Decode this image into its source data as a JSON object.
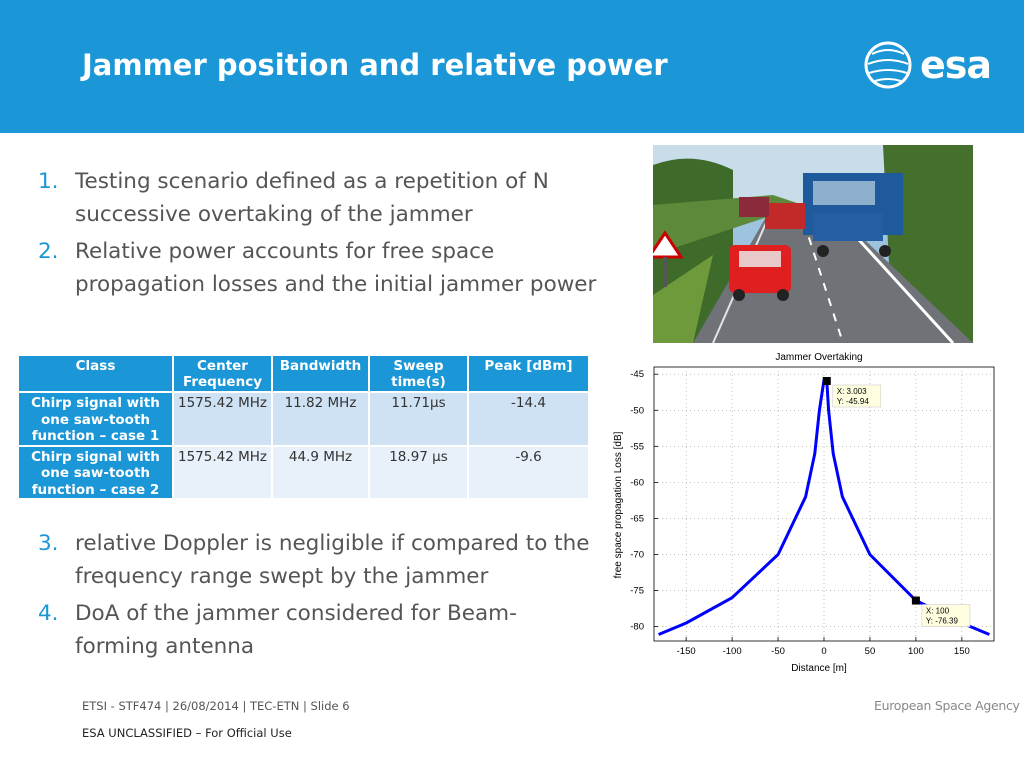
{
  "header": {
    "title": "Jammer position and relative power",
    "logo_text": "esa",
    "bg_color": "#1b96d6"
  },
  "bullets_top": [
    {
      "num": "1.",
      "text": "Testing scenario defined as a repetition of N successive overtaking of the jammer"
    },
    {
      "num": "2.",
      "text": "Relative power accounts for free space propagation losses and the initial jammer power"
    }
  ],
  "bullets_bottom": [
    {
      "num": "3.",
      "text": "relative Doppler is negligible if compared to the frequency range swept by the jammer"
    },
    {
      "num": "4.",
      "text": "DoA of the jammer considered for Beam-forming antenna"
    }
  ],
  "table": {
    "headers": [
      "Class",
      "Center Frequency",
      "Bandwidth",
      "Sweep time(s)",
      "Peak [dBm]"
    ],
    "rows": [
      [
        "Chirp signal with one saw-tooth function – case 1",
        "1575.42 MHz",
        "11.82 MHz",
        "11.71µs",
        "-14.4"
      ],
      [
        "Chirp signal with one saw-tooth function – case 2",
        "1575.42 MHz",
        "44.9 MHz",
        "18.97 µs",
        "-9.6"
      ]
    ]
  },
  "photo": {
    "icon": "road-overtaking-photo"
  },
  "chart_data": {
    "type": "line",
    "title": "Jammer Overtaking",
    "xlabel": "Distance [m]",
    "ylabel": "free space propagation Loss [dB]",
    "xlim": [
      -185,
      185
    ],
    "ylim": [
      -82,
      -44
    ],
    "xticks": [
      -150,
      -100,
      -50,
      0,
      50,
      100,
      150
    ],
    "yticks": [
      -45,
      -50,
      -55,
      -60,
      -65,
      -70,
      -75,
      -80
    ],
    "grid": true,
    "series": [
      {
        "x": [
          -180,
          -150,
          -100,
          -50,
          -20,
          -10,
          -5,
          0,
          3.003,
          5,
          10,
          20,
          50,
          100,
          150,
          180
        ],
        "y": [
          -81.1,
          -79.5,
          -76.0,
          -70.0,
          -62.0,
          -56.0,
          -50.0,
          -45.8,
          -45.94,
          -50.0,
          -56.0,
          -62.0,
          -70.0,
          -76.39,
          -79.5,
          -81.1
        ],
        "color": "#0000ff"
      }
    ],
    "annotations": [
      {
        "x": 3.003,
        "y": -45.94,
        "lines": [
          "X: 3.003",
          "Y: -45.94"
        ]
      },
      {
        "x": 100,
        "y": -76.39,
        "lines": [
          "X: 100",
          "Y: -76.39"
        ]
      }
    ]
  },
  "footer": {
    "left": "ETSI - STF474 | 26/08/2014 | TEC-ETN | Slide  6",
    "classification": "ESA UNCLASSIFIED – For Official Use",
    "agency": "European Space Agency"
  }
}
